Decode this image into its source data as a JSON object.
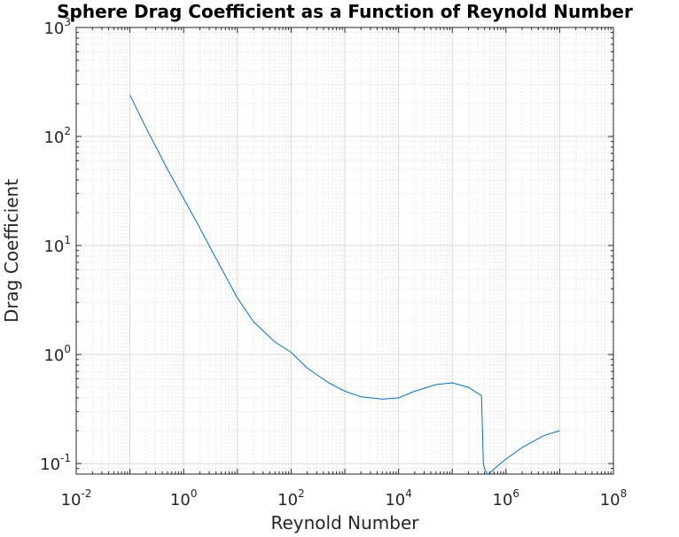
{
  "chart_data": {
    "type": "line",
    "title": "Sphere Drag Coefficient as a Function of Reynold Number",
    "xlabel": "Reynold Number",
    "ylabel": "Drag Coefficient",
    "xscale": "log",
    "yscale": "log",
    "xlim": [
      0.01,
      100000000
    ],
    "ylim": [
      0.08,
      1000
    ],
    "grid": true,
    "minor_grid": true,
    "line_color": "#0072bd",
    "x_ticks": [
      {
        "value": 0.01,
        "base": "10",
        "exp": "-2"
      },
      {
        "value": 1,
        "base": "10",
        "exp": "0"
      },
      {
        "value": 100,
        "base": "10",
        "exp": "2"
      },
      {
        "value": 10000,
        "base": "10",
        "exp": "4"
      },
      {
        "value": 1000000,
        "base": "10",
        "exp": "6"
      },
      {
        "value": 100000000,
        "base": "10",
        "exp": "8"
      }
    ],
    "y_ticks": [
      {
        "value": 0.1,
        "base": "10",
        "exp": "-1"
      },
      {
        "value": 1,
        "base": "10",
        "exp": "0"
      },
      {
        "value": 10,
        "base": "10",
        "exp": "1"
      },
      {
        "value": 100,
        "base": "10",
        "exp": "2"
      },
      {
        "value": 1000,
        "base": "10",
        "exp": "3"
      }
    ],
    "series": [
      {
        "x": [
          0.1,
          0.2,
          0.5,
          0.8,
          1,
          2,
          5,
          10,
          20,
          50,
          100,
          200,
          500,
          1000,
          2000,
          5000,
          10000,
          20000,
          50000,
          100000,
          200000,
          300000,
          350000,
          380000,
          400000,
          450000,
          500000,
          700000,
          1000000,
          2000000,
          5000000,
          10000000
        ],
        "y": [
          240,
          120,
          50,
          33,
          27,
          14.5,
          6.2,
          3.3,
          2,
          1.3,
          1.05,
          0.75,
          0.55,
          0.46,
          0.41,
          0.39,
          0.4,
          0.46,
          0.53,
          0.55,
          0.5,
          0.44,
          0.42,
          0.1,
          0.09,
          0.08,
          0.082,
          0.095,
          0.11,
          0.14,
          0.18,
          0.2
        ]
      }
    ]
  }
}
